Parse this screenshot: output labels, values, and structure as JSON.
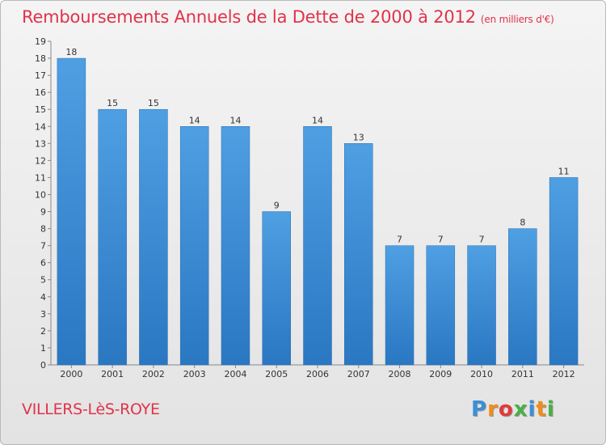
{
  "chart_data": {
    "type": "bar",
    "title": "Remboursements Annuels de la Dette de 2000 à 2012",
    "subtitle": "(en milliers d'€)",
    "xlabel": "",
    "ylabel": "",
    "ylim": [
      0,
      19
    ],
    "yticks": [
      0,
      1,
      2,
      3,
      4,
      5,
      6,
      7,
      8,
      9,
      10,
      11,
      12,
      13,
      14,
      15,
      16,
      17,
      18,
      19
    ],
    "categories": [
      "2000",
      "2001",
      "2002",
      "2003",
      "2004",
      "2005",
      "2006",
      "2007",
      "2008",
      "2009",
      "2010",
      "2011",
      "2012"
    ],
    "values": [
      18,
      15,
      15,
      14,
      14,
      9,
      14,
      13,
      7,
      7,
      7,
      8,
      11
    ],
    "grid": false,
    "bar_color": "#4f9fe3",
    "bar_color_dark": "#2a77c2"
  },
  "footer": {
    "commune": "VILLERS-LèS-ROYE",
    "logo_letters": [
      "P",
      "r",
      "o",
      "x",
      "i",
      "t",
      "i"
    ],
    "logo_colors": [
      "#3b8fd6",
      "#f08c1a",
      "#e33a3a",
      "#48b045",
      "#3b8fd6",
      "#f08c1a",
      "#48b045"
    ]
  }
}
